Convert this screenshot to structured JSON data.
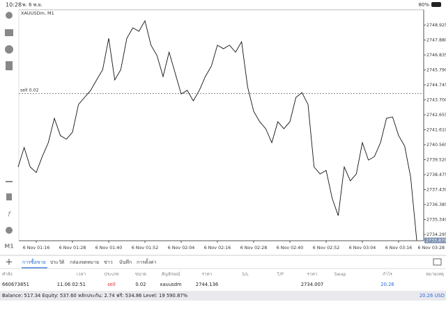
{
  "status_bar": {
    "time": "10:28",
    "date": "พ. 6 พ.ย.",
    "battery": "80%"
  },
  "chart_data": {
    "type": "line",
    "symbol_label": "XAUUSDm, M1",
    "timeframe": "M1",
    "values": [
      2739.01,
      2740.37,
      2739.01,
      2738.62,
      2739.74,
      2740.71,
      2742.41,
      2741.2,
      2740.95,
      2741.44,
      2743.38,
      2743.87,
      2744.36,
      2745.09,
      2745.81,
      2748.0,
      2745.09,
      2745.81,
      2748.0,
      2748.73,
      2748.49,
      2749.22,
      2747.52,
      2746.79,
      2745.33,
      2747.03,
      2745.57,
      2744.11,
      2744.36,
      2743.63,
      2744.36,
      2745.33,
      2746.06,
      2747.52,
      2747.27,
      2747.52,
      2747.03,
      2747.76,
      2744.6,
      2742.9,
      2742.17,
      2741.68,
      2740.71,
      2742.17,
      2741.68,
      2742.17,
      2743.87,
      2744.21,
      2743.38,
      2739.01,
      2738.52,
      2738.77,
      2736.82,
      2735.61,
      2739.01,
      2738.04,
      2738.52,
      2740.71,
      2739.49,
      2739.74,
      2740.71,
      2742.41,
      2742.51,
      2741.2,
      2740.47,
      2738.28,
      2733.879
    ],
    "color": "#111111",
    "xlim": [
      0,
      69
    ],
    "xticks": [
      {
        "value": 3,
        "label": "6 Nov 01:16"
      },
      {
        "value": 9,
        "label": "6 Nov 01:28"
      },
      {
        "value": 15,
        "label": "6 Nov 01:40"
      },
      {
        "value": 21,
        "label": "6 Nov 01:52"
      },
      {
        "value": 27,
        "label": "6 Nov 02:04"
      },
      {
        "value": 33,
        "label": "6 Nov 02:16"
      },
      {
        "value": 39,
        "label": "6 Nov 02:28"
      },
      {
        "value": 45,
        "label": "6 Nov 02:40"
      },
      {
        "value": 51,
        "label": "6 Nov 02:52"
      },
      {
        "value": 57,
        "label": "6 Nov 03:04"
      },
      {
        "value": 63,
        "label": "6 Nov 03:16"
      },
      {
        "value": 69,
        "label": "6 Nov 03:28"
      }
    ],
    "ylim": [
      2733.857,
      2749.995
    ],
    "yticks": [
      2748.925,
      {
        "value": 2747.88,
        "label": "2747.880"
      },
      2746.835,
      {
        "value": 2745.79,
        "label": "2745.790"
      },
      2744.745,
      {
        "value": 2743.7,
        "label": "2743.700"
      },
      2742.655,
      {
        "value": 2741.61,
        "label": "2741.610"
      },
      2740.565,
      {
        "value": 2739.52,
        "label": "2739.520"
      },
      2738.475,
      {
        "value": 2737.43,
        "label": "2737.430"
      },
      2736.385,
      {
        "value": 2735.34,
        "label": "2735.340"
      },
      2734.295
    ],
    "order_line": {
      "label": "sell 0.02",
      "value": 2744.136
    },
    "current_price": 2733.879
  },
  "tabs": [
    "การซื้อขาย",
    "ประวัติ",
    "กล่องจดหมาย",
    "ข่าว",
    "บันทึก",
    "การตั้งค่า"
  ],
  "table": {
    "headers": [
      "คำสั่ง",
      "เวลา",
      "ประเภท",
      "ขนาด",
      "สัญลักษณ์",
      "ราคา",
      "S/L",
      "T/P",
      "ราคา",
      "Swap",
      "กำไร",
      "หมายเหตุ"
    ],
    "rows": [
      [
        "660673851",
        "11.06 02:51",
        "sell",
        "0.02",
        "xauusdm",
        "2744.136",
        null,
        null,
        "2734.007",
        null,
        "20.26",
        null
      ]
    ]
  },
  "footer": {
    "summary": "Balance: 517.34 Equity: 537.60 หลักประกัน: 2.74 ฟรี: 534.86 Level: 19 590.87%",
    "total": "20.26 USD"
  }
}
